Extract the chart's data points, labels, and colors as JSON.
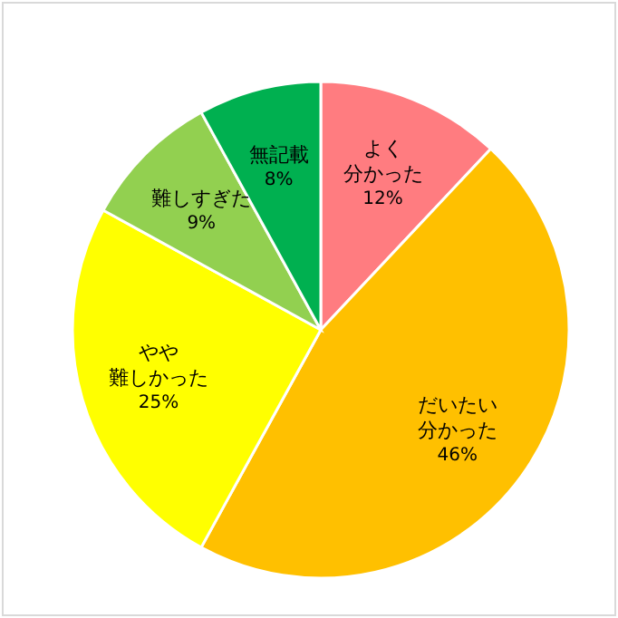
{
  "chart_data": {
    "type": "pie",
    "categories": [
      "よく分かった",
      "だいたい分かった",
      "やや難しかった",
      "難しすぎた",
      "無記載"
    ],
    "values": [
      12,
      46,
      25,
      9,
      8
    ],
    "value_labels": [
      "12%",
      "46%",
      "25%",
      "9%",
      "8%"
    ],
    "colors": [
      "#ff7c80",
      "#ffc000",
      "#ffff00",
      "#92d050",
      "#00b050"
    ],
    "legend": false
  }
}
